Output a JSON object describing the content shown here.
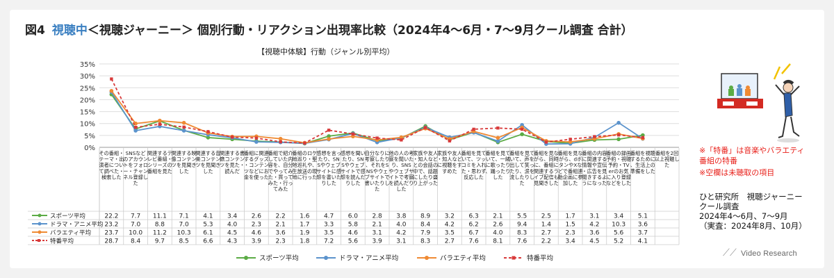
{
  "header": {
    "fig_label": "図4",
    "accent": "視聴中",
    "title_rest": "＜視聴ジャーニー＞ 個別行動・リアクション出現率比較（2024年4～6月・7～9月クール調査 合計）",
    "subtitle": "【視聴中体験】行動（ジャンル別平均）"
  },
  "notes": {
    "line1": "※「特番」は音楽やバラエティ",
    "line2": "番組の特番",
    "line3": "※空欄は未聴取の項目"
  },
  "source": {
    "line1": "ひと研究所　視聴ジャーニー",
    "line2": "クール調査",
    "line3": "2024年4～6月、7～9月",
    "line4": "（実査：2024年8月、10月）"
  },
  "logo": "Video Research",
  "chart_data": {
    "type": "line",
    "ylim": [
      0,
      35
    ],
    "yticks": [
      "0%",
      "5%",
      "10%",
      "15%",
      "20%",
      "25%",
      "30%",
      "35%"
    ],
    "grid": true,
    "legend_position": "bottom",
    "categories": [
      "その番組・テーマ・出演者について調べた・検索した",
      "SNSなどのアカウントをフォロー・チャンネル登録した",
      "関連するテレビ番組・シリーズの番組を見た",
      "関連する映像コンテンツを見聞きした",
      "関連する音楽コンテンツを見聞きした",
      "関連する書籍コンテンツを見た・読んだ",
      "番組に関連するグッズ・コンテンツなどにお金を使った",
      "番組で紹介していた内容を、自分でやってみた・買ってみた・行ってみた",
      "番組のロケ地巡り・聖地巡礼や、生放送の現地に行った",
      "感想を言ったり、SNSやウェブサイトに感想を書いたりした",
      "感想を聞いたり、SNSやウェブサイトで感想を読んだりした",
      "自分なりに考察したり、それをSNSやウェブサイトで書いたりした",
      "他の人の考察を聞いたり、SNSやウェブサイトで考察を読んだりした",
      "家族や友人・知人などとの会話の中で、話題にしたり盛り上がった",
      "家族や友人・知人などに視聴をすすめた",
      "番組を見ていて、ツッコミを入れた・思わず反応した",
      "番組を見ていて、一緒に歌ったり、踊ったりした",
      "番組を見ていて、声を出して笑ったり、涙を流したりした",
      "番組を見ながら、同時に、番組に関連するライブ配信も見聞きした",
      "番組を見ながら、dボタンやXなどで番組連動企画に参加した",
      "番組の内容に関連する情報や宣伝・広告を見聞きするようになった",
      "番組の録画予約・視聴予約・TVerのお気に入り登録などをした",
      "番組を視聴するために、生活上の準備をした",
      "番組を2回以上視聴した"
    ],
    "series": [
      {
        "name": "スポーツ平均",
        "color": "#5bab45",
        "dashed": false,
        "marker": "circle",
        "values": [
          22.2,
          7.7,
          11.1,
          7.1,
          4.1,
          3.4,
          2.6,
          2.2,
          1.6,
          4.7,
          6.0,
          2.8,
          3.8,
          8.9,
          3.2,
          6.3,
          2.1,
          5.5,
          2.5,
          1.7,
          3.1,
          3.4,
          5.1,
          null
        ]
      },
      {
        "name": "ドラマ・アニメ平均",
        "color": "#5b93cc",
        "dashed": false,
        "marker": "circle",
        "values": [
          23.2,
          7.0,
          8.8,
          7.0,
          5.3,
          4.0,
          2.3,
          2.1,
          1.7,
          3.3,
          5.8,
          2.1,
          4.0,
          8.4,
          4.2,
          6.2,
          2.6,
          9.4,
          1.4,
          1.5,
          4.2,
          10.3,
          3.6,
          null
        ]
      },
      {
        "name": "バラエティ平均",
        "color": "#ef8a33",
        "dashed": false,
        "marker": "circle",
        "values": [
          23.7,
          10.0,
          11.2,
          10.3,
          6.1,
          4.5,
          4.6,
          3.6,
          1.9,
          3.5,
          4.6,
          3.1,
          4.2,
          7.9,
          3.5,
          6.7,
          4.0,
          8.3,
          2.7,
          2.3,
          3.6,
          5.6,
          3.7,
          null
        ]
      },
      {
        "name": "特番平均",
        "color": "#d83a3a",
        "dashed": true,
        "marker": "square",
        "values": [
          28.7,
          8.4,
          9.7,
          8.5,
          6.6,
          4.3,
          3.9,
          2.3,
          1.8,
          7.2,
          5.6,
          3.9,
          3.1,
          8.3,
          2.7,
          7.6,
          8.1,
          7.6,
          2.2,
          3.4,
          4.5,
          5.2,
          4.1,
          null
        ]
      }
    ]
  }
}
